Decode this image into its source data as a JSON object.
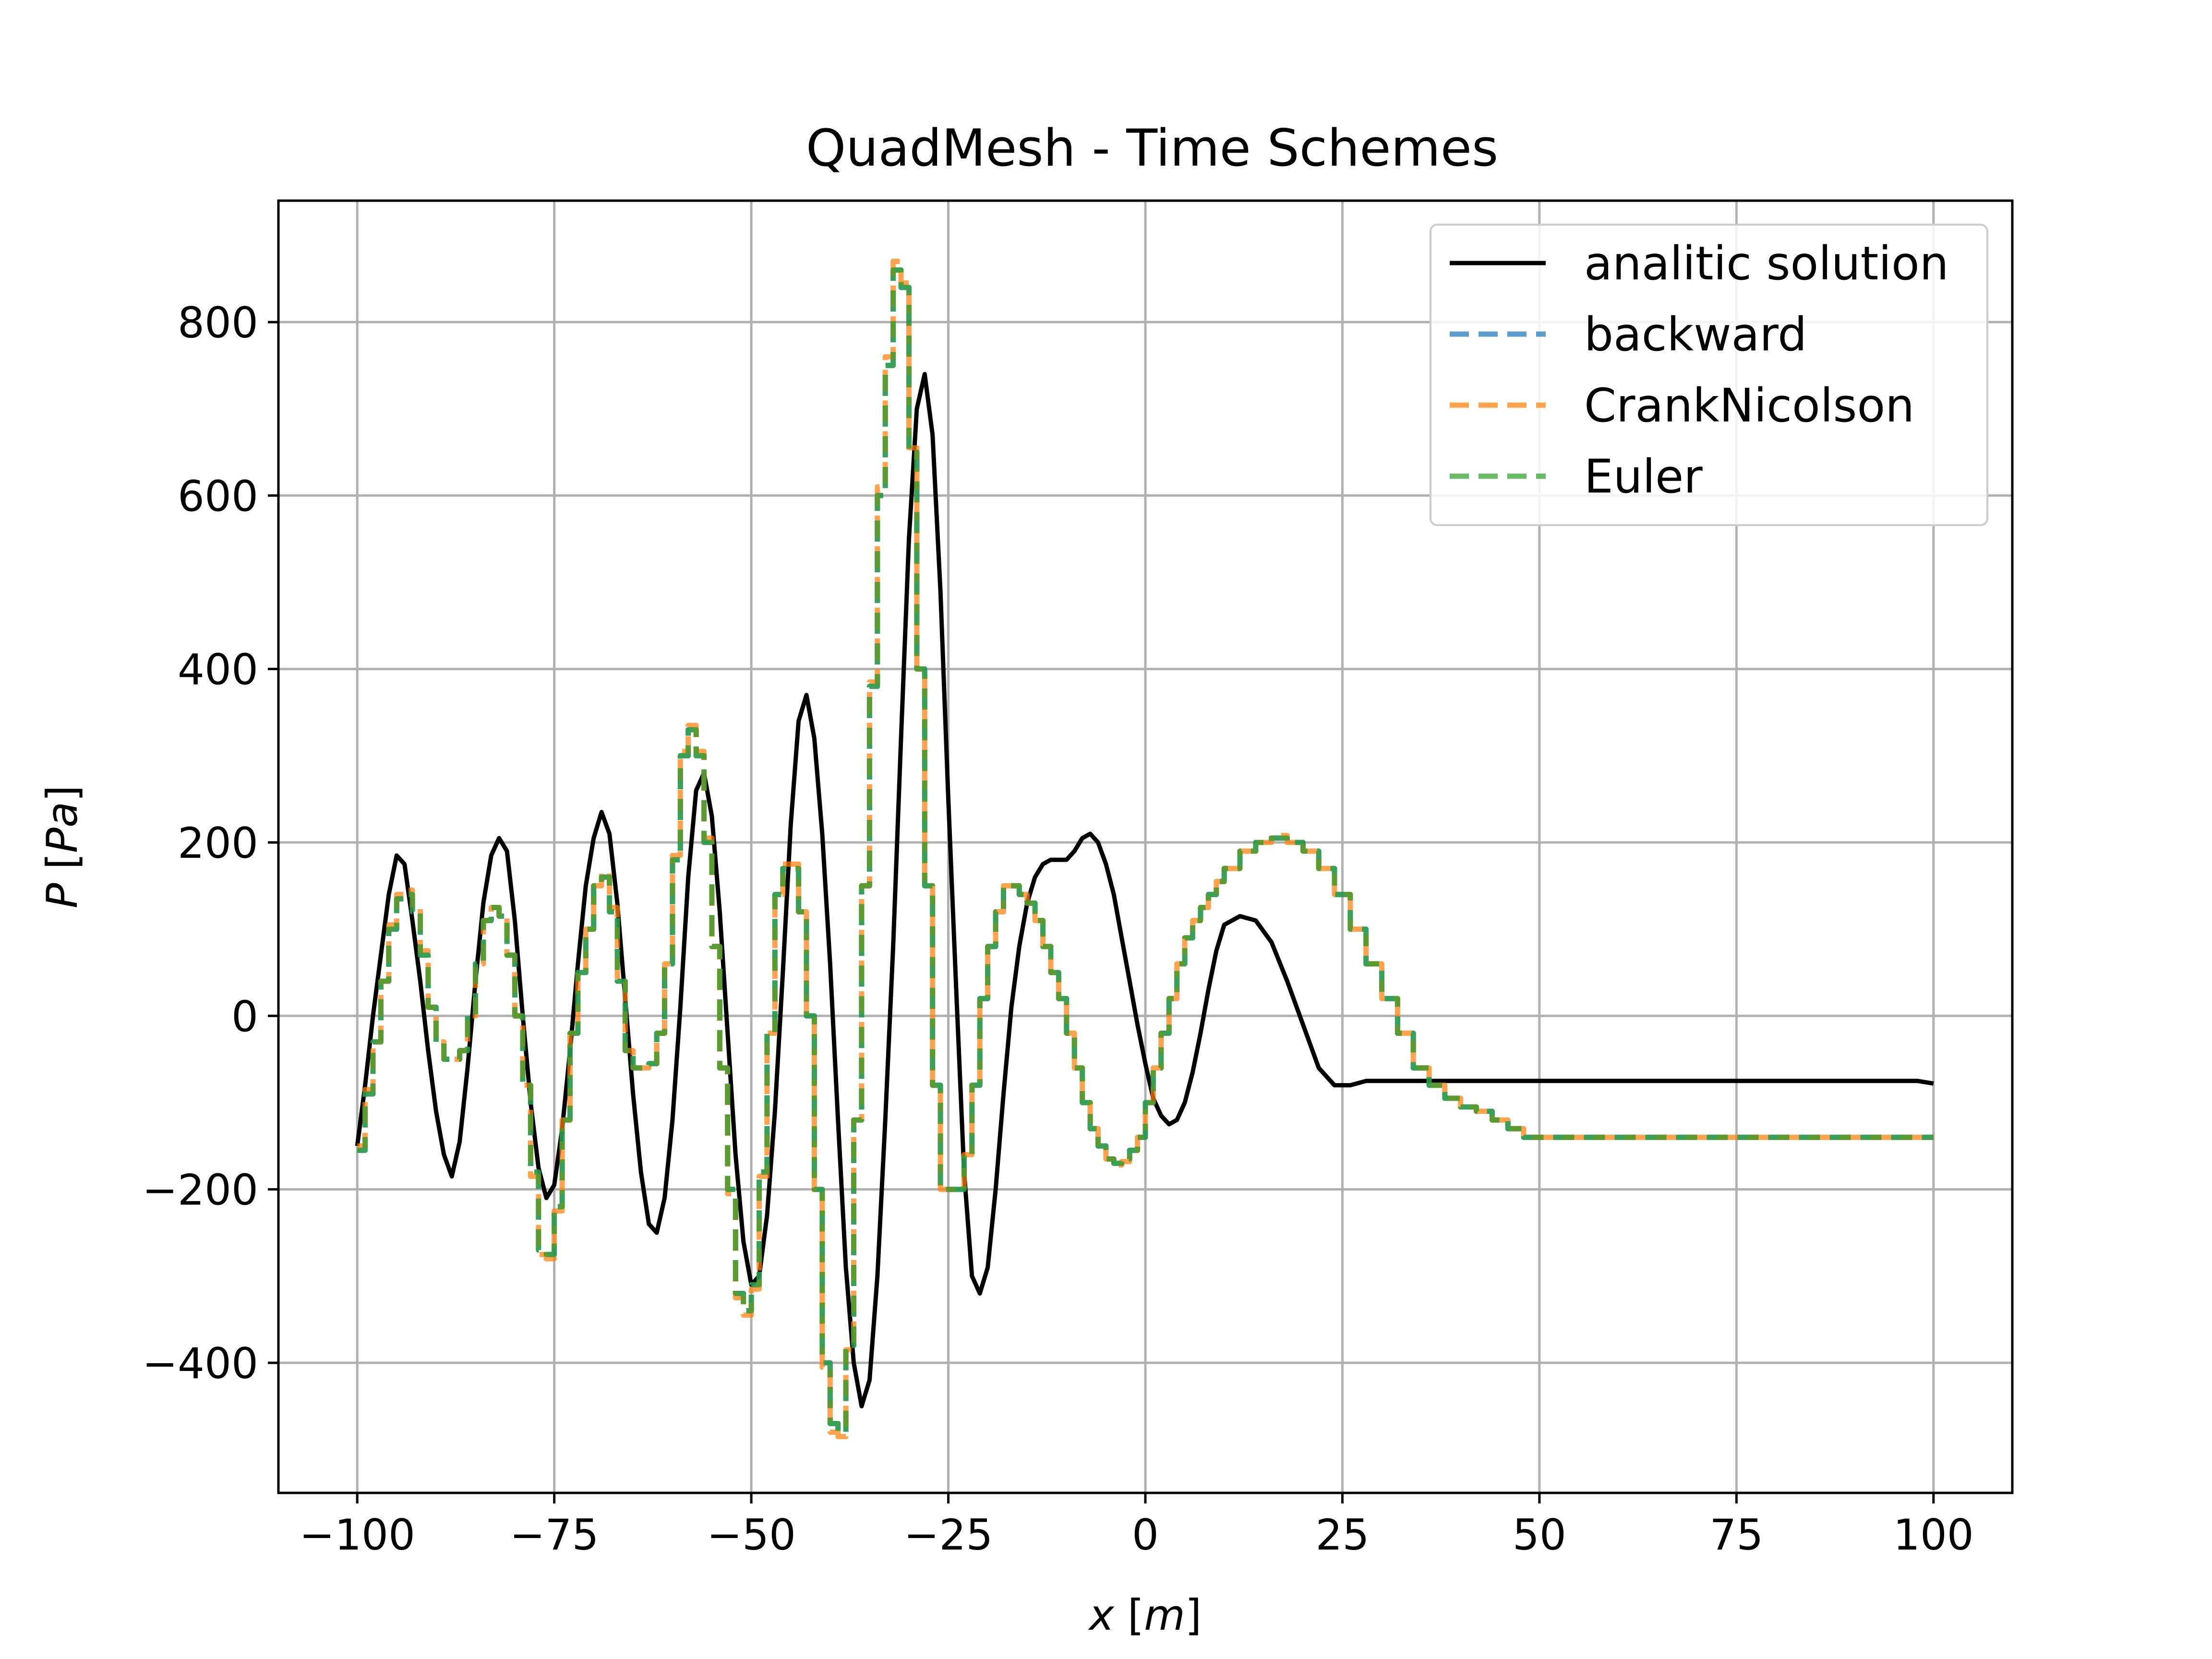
{
  "chart_data": {
    "type": "line",
    "title": "QuadMesh - Time Schemes",
    "xlabel": "x [m]",
    "ylabel": "P [Pa]",
    "xlim": [
      -110,
      110
    ],
    "ylim": [
      -550,
      940
    ],
    "x_ticks": [
      -100,
      -75,
      -50,
      -25,
      0,
      25,
      50,
      75,
      100
    ],
    "y_ticks": [
      -400,
      -200,
      0,
      200,
      400,
      600,
      800
    ],
    "x_tick_labels": [
      "−100",
      "−75",
      "−50",
      "−25",
      "0",
      "25",
      "50",
      "75",
      "100"
    ],
    "y_tick_labels": [
      "−400",
      "−200",
      "0",
      "200",
      "400",
      "600",
      "800"
    ],
    "grid": true,
    "legend_position": "top-right",
    "series": [
      {
        "name": "analitic solution",
        "color": "#000000",
        "style": "solid",
        "x": [
          -100,
          -99,
          -98,
          -97,
          -96,
          -95,
          -94,
          -93,
          -92,
          -91,
          -90,
          -89,
          -88,
          -87,
          -86,
          -85,
          -84,
          -83,
          -82,
          -81,
          -80,
          -79,
          -78,
          -77,
          -76,
          -75,
          -74,
          -73,
          -72,
          -71,
          -70,
          -69,
          -68,
          -67,
          -66,
          -65,
          -64,
          -63,
          -62,
          -61,
          -60,
          -59,
          -58,
          -57,
          -56,
          -55,
          -54,
          -53,
          -52,
          -51,
          -50,
          -49,
          -48,
          -47,
          -46,
          -45,
          -44,
          -43,
          -42,
          -41,
          -40,
          -39,
          -38,
          -37,
          -36,
          -35,
          -34,
          -33,
          -32,
          -31,
          -30,
          -29,
          -28,
          -27,
          -26,
          -25,
          -24,
          -23,
          -22,
          -21,
          -20,
          -19,
          -18,
          -17,
          -16,
          -15,
          -14,
          -13,
          -12,
          -11,
          -10,
          -9,
          -8,
          -7,
          -6,
          -5,
          -4,
          -3,
          -2,
          -1,
          0,
          1,
          2,
          3,
          4,
          5,
          6,
          7,
          8,
          9,
          10,
          12,
          14,
          16,
          18,
          20,
          22,
          24,
          26,
          28,
          30,
          32,
          34,
          36,
          38,
          40,
          42,
          44,
          46,
          48,
          50,
          52,
          54,
          56,
          58,
          60,
          62,
          64,
          66,
          68,
          70,
          72,
          74,
          76,
          78,
          80,
          82,
          84,
          86,
          88,
          90,
          92,
          94,
          96,
          98,
          100
        ],
        "y": [
          -150,
          -80,
          0,
          70,
          140,
          185,
          175,
          110,
          40,
          -40,
          -110,
          -160,
          -185,
          -145,
          -60,
          40,
          130,
          185,
          205,
          190,
          110,
          0,
          -100,
          -175,
          -210,
          -195,
          -130,
          -40,
          60,
          150,
          205,
          235,
          210,
          130,
          20,
          -90,
          -180,
          -240,
          -250,
          -210,
          -120,
          10,
          160,
          260,
          280,
          230,
          120,
          -20,
          -160,
          -260,
          -310,
          -300,
          -230,
          -110,
          50,
          220,
          340,
          370,
          320,
          210,
          60,
          -120,
          -290,
          -400,
          -450,
          -420,
          -300,
          -120,
          80,
          320,
          550,
          700,
          740,
          670,
          490,
          250,
          30,
          -180,
          -300,
          -320,
          -290,
          -200,
          -90,
          10,
          80,
          130,
          160,
          175,
          180,
          180,
          180,
          190,
          205,
          210,
          200,
          175,
          140,
          90,
          40,
          -10,
          -55,
          -95,
          -115,
          -125,
          -120,
          -100,
          -65,
          -20,
          30,
          75,
          105,
          115,
          110,
          85,
          40,
          -10,
          -60,
          -80,
          -80,
          -75,
          -75,
          -75,
          -75,
          -75,
          -75,
          -75,
          -75,
          -75,
          -75,
          -75,
          -75,
          -75,
          -75,
          -75,
          -75,
          -75,
          -75,
          -75,
          -75,
          -75,
          -75,
          -75,
          -75,
          -75,
          -75,
          -75,
          -75,
          -75,
          -75,
          -75,
          -75,
          -75,
          -75,
          -75,
          -75,
          -78
        ]
      },
      {
        "name": "backward",
        "color": "#1f77b4",
        "style": "dashed",
        "x": [
          -100,
          -99,
          -98,
          -97,
          -96,
          -95,
          -94,
          -93,
          -92,
          -91,
          -90,
          -89,
          -88,
          -87,
          -86,
          -85,
          -84,
          -83,
          -82,
          -81,
          -80,
          -79,
          -78,
          -77,
          -76,
          -75,
          -74,
          -73,
          -72,
          -71,
          -70,
          -69,
          -68,
          -67,
          -66,
          -65,
          -64,
          -63,
          -62,
          -61,
          -60,
          -59,
          -58,
          -57,
          -56,
          -55,
          -54,
          -53,
          -52,
          -51,
          -50,
          -49,
          -48,
          -47,
          -46,
          -45,
          -44,
          -43,
          -42,
          -41,
          -40,
          -39,
          -38,
          -37,
          -36,
          -35,
          -34,
          -33,
          -32,
          -31,
          -30,
          -29,
          -28,
          -27,
          -26,
          -25,
          -24,
          -23,
          -22,
          -21,
          -20,
          -19,
          -18,
          -17,
          -16,
          -15,
          -14,
          -13,
          -12,
          -11,
          -10,
          -9,
          -8,
          -7,
          -6,
          -5,
          -4,
          -3,
          -2,
          -1,
          0,
          1,
          2,
          3,
          4,
          5,
          6,
          7,
          8,
          9,
          10,
          12,
          14,
          16,
          18,
          20,
          22,
          24,
          26,
          28,
          30,
          32,
          34,
          36,
          38,
          40,
          42,
          44,
          46,
          48,
          50,
          52,
          54,
          56,
          58,
          60,
          62,
          64,
          66,
          68,
          70,
          72,
          74,
          76,
          78,
          80,
          82,
          84,
          86,
          88,
          90,
          92,
          94,
          96,
          98,
          100
        ],
        "y": [
          -155,
          -90,
          -30,
          40,
          100,
          135,
          140,
          120,
          70,
          10,
          -30,
          -50,
          -50,
          -40,
          0,
          60,
          110,
          125,
          115,
          70,
          0,
          -80,
          -180,
          -270,
          -275,
          -220,
          -120,
          -20,
          50,
          100,
          150,
          160,
          120,
          40,
          -40,
          -60,
          -60,
          -55,
          -20,
          60,
          180,
          300,
          330,
          300,
          200,
          80,
          -60,
          -200,
          -320,
          -340,
          -310,
          -180,
          -20,
          140,
          170,
          170,
          120,
          0,
          -200,
          -400,
          -470,
          -480,
          -380,
          -120,
          150,
          380,
          600,
          750,
          860,
          840,
          650,
          400,
          150,
          -80,
          -200,
          -200,
          -200,
          -160,
          -80,
          20,
          80,
          120,
          150,
          150,
          140,
          130,
          110,
          80,
          50,
          20,
          -20,
          -60,
          -100,
          -130,
          -150,
          -165,
          -170,
          -165,
          -155,
          -140,
          -100,
          -60,
          -20,
          20,
          60,
          90,
          110,
          125,
          140,
          155,
          170,
          190,
          200,
          205,
          200,
          190,
          170,
          140,
          100,
          60,
          20,
          -20,
          -60,
          -80,
          -95,
          -105,
          -110,
          -120,
          -130,
          -140,
          -140,
          -140,
          -140,
          -140,
          -140,
          -140,
          -140,
          -140,
          -140,
          -140,
          -140,
          -140,
          -140,
          -140,
          -140,
          -140,
          -140,
          -140,
          -140,
          -140,
          -140,
          -140,
          -140,
          -140,
          -140,
          -140
        ]
      },
      {
        "name": "CrankNicolson",
        "color": "#ff7f0e",
        "style": "dashed",
        "x": [
          -100,
          -99,
          -98,
          -97,
          -96,
          -95,
          -94,
          -93,
          -92,
          -91,
          -90,
          -89,
          -88,
          -87,
          -86,
          -85,
          -84,
          -83,
          -82,
          -81,
          -80,
          -79,
          -78,
          -77,
          -76,
          -75,
          -74,
          -73,
          -72,
          -71,
          -70,
          -69,
          -68,
          -67,
          -66,
          -65,
          -64,
          -63,
          -62,
          -61,
          -60,
          -59,
          -58,
          -57,
          -56,
          -55,
          -54,
          -53,
          -52,
          -51,
          -50,
          -49,
          -48,
          -47,
          -46,
          -45,
          -44,
          -43,
          -42,
          -41,
          -40,
          -39,
          -38,
          -37,
          -36,
          -35,
          -34,
          -33,
          -32,
          -31,
          -30,
          -29,
          -28,
          -27,
          -26,
          -25,
          -24,
          -23,
          -22,
          -21,
          -20,
          -19,
          -18,
          -17,
          -16,
          -15,
          -14,
          -13,
          -12,
          -11,
          -10,
          -9,
          -8,
          -7,
          -6,
          -5,
          -4,
          -3,
          -2,
          -1,
          0,
          1,
          2,
          3,
          4,
          5,
          6,
          7,
          8,
          9,
          10,
          12,
          14,
          16,
          18,
          20,
          22,
          24,
          26,
          28,
          30,
          32,
          34,
          36,
          38,
          40,
          42,
          44,
          46,
          48,
          50,
          52,
          54,
          56,
          58,
          60,
          62,
          64,
          66,
          68,
          70,
          72,
          74,
          76,
          78,
          80,
          82,
          84,
          86,
          88,
          90,
          92,
          94,
          96,
          98,
          100
        ],
        "y": [
          -150,
          -85,
          -30,
          40,
          105,
          140,
          145,
          125,
          75,
          10,
          -30,
          -50,
          -50,
          -40,
          0,
          60,
          110,
          125,
          115,
          70,
          0,
          -80,
          -185,
          -275,
          -280,
          -225,
          -120,
          -20,
          50,
          100,
          150,
          165,
          125,
          40,
          -40,
          -60,
          -60,
          -55,
          -20,
          60,
          185,
          305,
          335,
          305,
          205,
          80,
          -60,
          -205,
          -325,
          -345,
          -315,
          -185,
          -20,
          140,
          175,
          175,
          120,
          0,
          -205,
          -405,
          -480,
          -485,
          -385,
          -120,
          150,
          385,
          610,
          760,
          870,
          845,
          655,
          400,
          150,
          -80,
          -200,
          -200,
          -200,
          -160,
          -80,
          20,
          80,
          120,
          150,
          150,
          140,
          130,
          110,
          80,
          50,
          20,
          -20,
          -60,
          -100,
          -130,
          -150,
          -165,
          -172,
          -168,
          -155,
          -140,
          -100,
          -60,
          -20,
          20,
          60,
          90,
          110,
          125,
          140,
          155,
          170,
          190,
          200,
          208,
          200,
          190,
          170,
          140,
          100,
          60,
          20,
          -20,
          -60,
          -80,
          -95,
          -105,
          -110,
          -120,
          -130,
          -140,
          -140,
          -140,
          -140,
          -140,
          -140,
          -140,
          -140,
          -140,
          -140,
          -140,
          -140,
          -140,
          -140,
          -140,
          -140,
          -140,
          -140,
          -140,
          -140,
          -140,
          -140,
          -140,
          -140,
          -140,
          -140,
          -140
        ]
      },
      {
        "name": "Euler",
        "color": "#2ca02c",
        "style": "dashed",
        "x": [
          -100,
          -99,
          -98,
          -97,
          -96,
          -95,
          -94,
          -93,
          -92,
          -91,
          -90,
          -89,
          -88,
          -87,
          -86,
          -85,
          -84,
          -83,
          -82,
          -81,
          -80,
          -79,
          -78,
          -77,
          -76,
          -75,
          -74,
          -73,
          -72,
          -71,
          -70,
          -69,
          -68,
          -67,
          -66,
          -65,
          -64,
          -63,
          -62,
          -61,
          -60,
          -59,
          -58,
          -57,
          -56,
          -55,
          -54,
          -53,
          -52,
          -51,
          -50,
          -49,
          -48,
          -47,
          -46,
          -45,
          -44,
          -43,
          -42,
          -41,
          -40,
          -39,
          -38,
          -37,
          -36,
          -35,
          -34,
          -33,
          -32,
          -31,
          -30,
          -29,
          -28,
          -27,
          -26,
          -25,
          -24,
          -23,
          -22,
          -21,
          -20,
          -19,
          -18,
          -17,
          -16,
          -15,
          -14,
          -13,
          -12,
          -11,
          -10,
          -9,
          -8,
          -7,
          -6,
          -5,
          -4,
          -3,
          -2,
          -1,
          0,
          1,
          2,
          3,
          4,
          5,
          6,
          7,
          8,
          9,
          10,
          12,
          14,
          16,
          18,
          20,
          22,
          24,
          26,
          28,
          30,
          32,
          34,
          36,
          38,
          40,
          42,
          44,
          46,
          48,
          50,
          52,
          54,
          56,
          58,
          60,
          62,
          64,
          66,
          68,
          70,
          72,
          74,
          76,
          78,
          80,
          82,
          84,
          86,
          88,
          90,
          92,
          94,
          96,
          98,
          100
        ],
        "y": [
          -155,
          -90,
          -30,
          40,
          100,
          135,
          140,
          120,
          70,
          10,
          -30,
          -50,
          -50,
          -40,
          0,
          60,
          110,
          125,
          115,
          70,
          0,
          -80,
          -180,
          -270,
          -275,
          -220,
          -120,
          -20,
          50,
          100,
          150,
          160,
          120,
          40,
          -40,
          -60,
          -60,
          -55,
          -20,
          60,
          180,
          300,
          330,
          300,
          200,
          80,
          -60,
          -200,
          -320,
          -340,
          -310,
          -180,
          -20,
          140,
          170,
          170,
          120,
          0,
          -200,
          -400,
          -470,
          -480,
          -380,
          -120,
          150,
          380,
          600,
          750,
          860,
          840,
          650,
          400,
          150,
          -80,
          -200,
          -200,
          -200,
          -160,
          -80,
          20,
          80,
          120,
          150,
          150,
          140,
          130,
          110,
          80,
          50,
          20,
          -20,
          -60,
          -100,
          -130,
          -150,
          -165,
          -170,
          -165,
          -155,
          -140,
          -100,
          -60,
          -20,
          20,
          60,
          90,
          110,
          125,
          140,
          155,
          170,
          190,
          200,
          205,
          200,
          190,
          170,
          140,
          100,
          60,
          20,
          -20,
          -60,
          -80,
          -95,
          -105,
          -110,
          -120,
          -130,
          -140,
          -140,
          -140,
          -140,
          -140,
          -140,
          -140,
          -140,
          -140,
          -140,
          -140,
          -140,
          -140,
          -140,
          -140,
          -140,
          -140,
          -140,
          -140,
          -140,
          -140,
          -140,
          -140,
          -140,
          -140,
          -140,
          -140
        ]
      }
    ]
  }
}
